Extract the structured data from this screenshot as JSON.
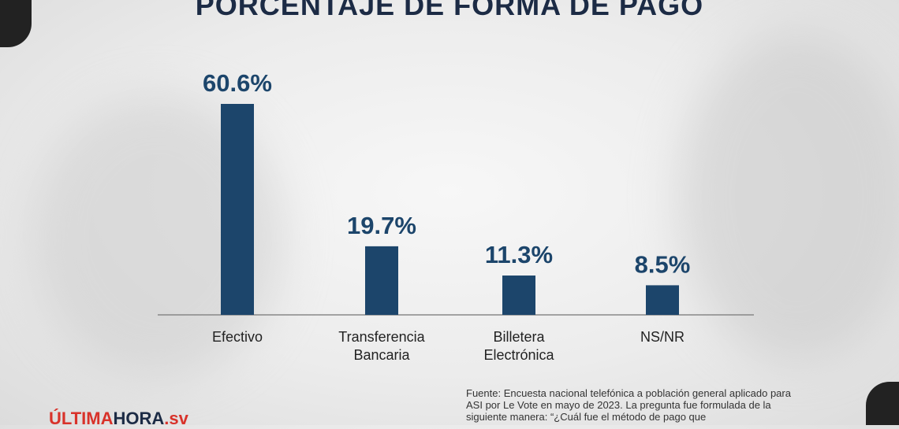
{
  "title": "PORCENTAJE DE FORMA DE PAGO",
  "source_note": "Fuente: Encuesta nacional telefónica a población general aplicado para ASI por Le Vote en mayo de 2023. La pregunta fue formulada de la siguiente manera: “¿Cuál fue el método de pago que",
  "logo": {
    "part1": "ÚLTIMA",
    "part2": "HORA",
    "part3": ".sv"
  },
  "colors": {
    "bar": "#1c456b",
    "label": "#1c456b",
    "axis": "#888888"
  },
  "chart_data": {
    "type": "bar",
    "title": "PORCENTAJE DE FORMA DE PAGO",
    "categories": [
      [
        "Efectivo"
      ],
      [
        "Transferencia",
        "Bancaria"
      ],
      [
        "Billetera",
        "Electrónica"
      ],
      [
        "NS/NR"
      ]
    ],
    "values": [
      60.6,
      19.7,
      11.3,
      8.5
    ],
    "value_labels": [
      "60.6%",
      "19.7%",
      "11.3%",
      "8.5%"
    ],
    "unit": "%",
    "ylim": [
      0,
      60.6
    ],
    "grid": false,
    "legend": "none"
  }
}
